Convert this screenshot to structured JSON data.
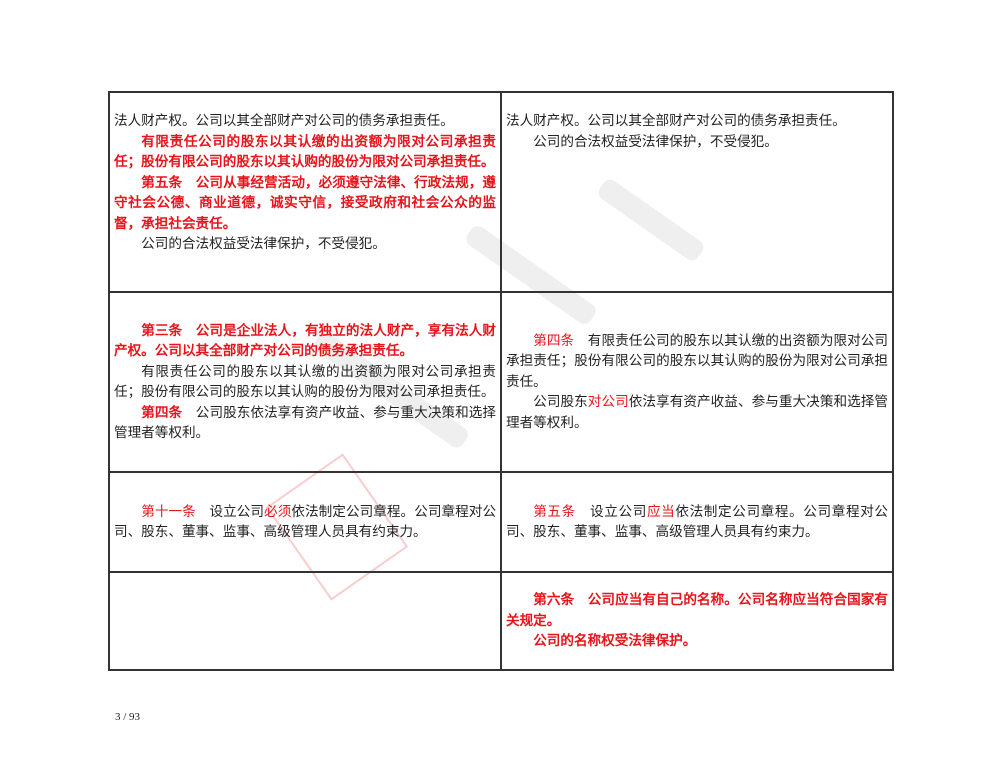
{
  "rows": [
    {
      "left": [
        {
          "t0": "法人财产权。公司以其全部财产对公司的债务承担责任。"
        },
        {
          "t0": "有限责任公司的股东以其认缴的出资额为限对公司承担责任；股份有限公司的股东以其认购的股份为限对公司承担责任。"
        },
        {
          "t0": "第五条　公司从事经营活动，必须遵守法律、行政法规，遵守社会公德、商业道德，诚实守信，接受政府和社会公众的监督，承担社会责任。"
        },
        {
          "t0": "公司的合法权益受法律保护，不受侵犯。"
        }
      ],
      "right": [
        {
          "t0": "法人财产权。公司以其全部财产对公司的债务承担责任。"
        },
        {
          "t0": "公司的合法权益受法律保护，不受侵犯。"
        }
      ]
    },
    {
      "left": [
        {
          "t0": "第三条　公司是企业法人，有独立的法人财产，享有法人财产权。公司以其全部财产对公司的债务承担责任。"
        },
        {
          "t0": "有限责任公司的股东以其认缴的出资额为限对公司承担责任；股份有限公司的股东以其认购的股份为限对公司承担责任。"
        },
        {
          "t0": "第四条",
          "t1": "　公司股东依法享有资产收益、参与重大决策和选择管理者等权利。"
        }
      ],
      "right": [
        {
          "t0": "第四条",
          "t1": "　有限责任公司的股东以其认缴的出资额为限对公司承担责任；股份有限公司的股东以其认购的股份为限对公司承担责任。"
        },
        {
          "t0": "公司股东",
          "t1": "对公司",
          "t2": "依法享有资产收益、参与重大决策和选择管理者等权利。"
        }
      ]
    },
    {
      "left": [
        {
          "t0": "第十一条",
          "t1": "　设立公司",
          "t2": "必须",
          "t3": "依法制定公司章程。公司章程对公司、股东、董事、监事、高级管理人员具有约束力。"
        }
      ],
      "right": [
        {
          "t0": "第五条",
          "t1": "　设立公司",
          "t2": "应当",
          "t3": "依法制定公司章程。公司章程对公司、股东、董事、监事、高级管理人员具有约束力。"
        }
      ]
    },
    {
      "left": [],
      "right": [
        {
          "t0": "第六条　公司应当有自己的名称。公司名称应当符合国家有关规定。"
        },
        {
          "t0": "公司的名称权受法律保护。"
        }
      ]
    }
  ],
  "footer": {
    "page": "3 / 93"
  },
  "colors": {
    "highlight": "#e8141b",
    "text": "#222222",
    "border": "#333333"
  }
}
